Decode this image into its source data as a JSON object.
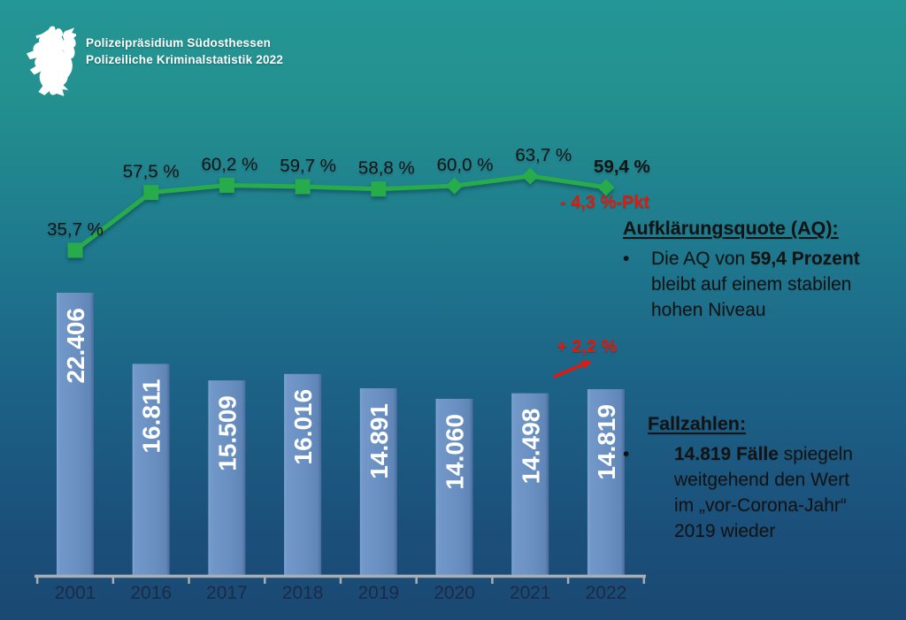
{
  "header": {
    "org": "Polizeipräsidium Südosthessen",
    "subtitle": "Polizeiliche Kriminalstatistik 2022"
  },
  "ui": {
    "bullet_char": "•"
  },
  "chart_data": {
    "type": "combo-bar-line",
    "categories": [
      "2001",
      "2016",
      "2017",
      "2018",
      "2019",
      "2020",
      "2021",
      "2022"
    ],
    "series": [
      {
        "name": "Fallzahlen",
        "type": "bar",
        "values": [
          22406,
          16811,
          15509,
          16016,
          14891,
          14060,
          14498,
          14819
        ],
        "display_labels": [
          "22.406",
          "16.811",
          "15.509",
          "16.016",
          "14.891",
          "14.060",
          "14.498",
          "14.819"
        ],
        "color": "#6a91c3"
      },
      {
        "name": "Aufklärungsquote (AQ)",
        "type": "line",
        "values": [
          35.7,
          57.5,
          60.2,
          59.7,
          58.8,
          60.0,
          63.7,
          59.4
        ],
        "display_labels": [
          "35,7 %",
          "57,5 %",
          "60,2 %",
          "59,7 %",
          "58,8 %",
          "60,0 %",
          "63,7 %",
          "59,4 %"
        ],
        "color": "#27ab4b"
      }
    ],
    "annotations": [
      {
        "text": "- 4,3 %-Pkt",
        "color": "#e2190b"
      },
      {
        "text": "+ 2,2 %",
        "color": "#e2190b"
      }
    ],
    "grid": false,
    "legend_position": "none",
    "value_axis_visible": false,
    "colors": {
      "bar": "#6a91c3",
      "bar_edge_dark": "#4a6b9a",
      "line": "#27ab4b",
      "axis": "#a8aeb4",
      "year_label": "#1c2a45",
      "pct_label": "#141414",
      "bar_label": "#ffffff",
      "annotation_red": "#e2190b"
    }
  },
  "aq_block": {
    "title": "Aufklärungsquote (AQ):",
    "bullet": {
      "line1_pre": "Die AQ von ",
      "line1_bold": "59,4 Prozent",
      "line2": "bleibt auf einem stabilen",
      "line3": "hohen Niveau"
    }
  },
  "cases_block": {
    "title": "Fallzahlen:",
    "bullet": {
      "line1_bold": "14.819 Fälle",
      "line1_rest": " spiegeln",
      "line2": "weitgehend den Wert",
      "line3": "im „vor-Corona-Jahr“",
      "line4": "2019 wieder"
    }
  }
}
